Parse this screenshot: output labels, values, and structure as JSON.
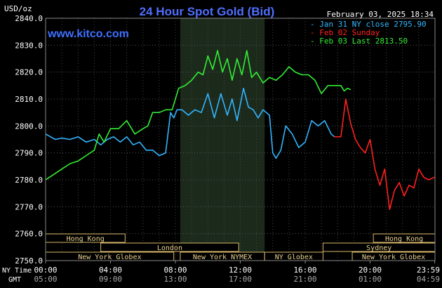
{
  "chart_data": {
    "type": "line",
    "title": "24 Hour Spot Gold (Bid)",
    "site": "www.kitco.com",
    "date_label": "February 03, 2025 18:34",
    "ylabel": "USD/oz",
    "ylim": [
      2750,
      2840
    ],
    "yticks": [
      "2840.0",
      "2830.0",
      "2820.0",
      "2810.0",
      "2800.0",
      "2790.0",
      "2780.0",
      "2770.0",
      "2760.0",
      "2750.0"
    ],
    "ytick_values": [
      2840,
      2830,
      2820,
      2810,
      2800,
      2790,
      2780,
      2770,
      2760,
      2750
    ],
    "xlim": [
      0,
      24
    ],
    "ny_time_label": "NY Time",
    "gmt_label": "GMT",
    "xticks_ny": [
      "00:00",
      "04:00",
      "08:00",
      "12:00",
      "16:00",
      "20:00",
      "23:59"
    ],
    "xticks_gmt": [
      "05:00",
      "09:00",
      "13:00",
      "17:00",
      "21:00",
      "01:00",
      "04:59"
    ],
    "xtick_hours": [
      0,
      4,
      8,
      12,
      16,
      20,
      23.98
    ],
    "grid": true,
    "nymex_shade_hours": [
      8.3,
      13.5
    ],
    "legend_position": "top-right",
    "series": [
      {
        "name": "Jan 31 NY close 2795.90",
        "color": "#33b5ff",
        "x": [
          0,
          0.3,
          0.6,
          1,
          1.5,
          2,
          2.5,
          3,
          3.4,
          3.8,
          4.2,
          4.6,
          5,
          5.4,
          5.8,
          6.2,
          6.6,
          7,
          7.4,
          7.7,
          7.9,
          8.1,
          8.4,
          8.8,
          9.2,
          9.6,
          10,
          10.4,
          10.8,
          11.2,
          11.5,
          11.8,
          12.2,
          12.5,
          12.8,
          13.1,
          13.4,
          13.8,
          14.0,
          14.2,
          14.5,
          14.8,
          15.2,
          15.6,
          16,
          16.4,
          16.8,
          17.2,
          17.6,
          17.8
        ],
        "values": [
          2797,
          2796,
          2795,
          2795.5,
          2795,
          2796,
          2794,
          2795,
          2793,
          2795,
          2796,
          2794,
          2796,
          2793,
          2794,
          2791,
          2791,
          2789,
          2790,
          2805,
          2803,
          2806,
          2806,
          2804,
          2806,
          2805,
          2812,
          2803,
          2812,
          2804,
          2810,
          2802,
          2814,
          2807,
          2806,
          2803,
          2806,
          2804,
          2790,
          2788,
          2791,
          2800,
          2797,
          2792,
          2794,
          2802,
          2800,
          2802,
          2797,
          2796
        ]
      },
      {
        "name": "Feb 02 Sunday",
        "color": "#ff2020",
        "x": [
          17.8,
          18.2,
          18.5,
          18.8,
          19.1,
          19.4,
          19.7,
          20,
          20.3,
          20.6,
          20.9,
          21.2,
          21.5,
          21.8,
          22.1,
          22.4,
          22.7,
          23,
          23.3,
          23.6,
          23.98
        ],
        "values": [
          2796,
          2796,
          2810,
          2801,
          2795,
          2792,
          2790,
          2795,
          2784,
          2778,
          2784,
          2769,
          2776,
          2779,
          2774,
          2778,
          2777,
          2784,
          2781,
          2780,
          2781
        ]
      },
      {
        "name": "Feb 03 Last 2813.50",
        "color": "#33ee33",
        "x": [
          0,
          0.5,
          1,
          1.5,
          2,
          2.5,
          3,
          3.3,
          3.6,
          4,
          4.5,
          5,
          5.5,
          6,
          6.3,
          6.6,
          7,
          7.4,
          7.8,
          8.2,
          8.6,
          9,
          9.4,
          9.7,
          10,
          10.3,
          10.6,
          10.9,
          11.2,
          11.5,
          11.8,
          12.1,
          12.4,
          12.7,
          13,
          13.4,
          13.8,
          14.2,
          14.6,
          15,
          15.4,
          15.8,
          16.2,
          16.6,
          17,
          17.4,
          17.8,
          18.2,
          18.4,
          18.6,
          18.8
        ],
        "values": [
          2780,
          2782,
          2784,
          2786,
          2787,
          2789,
          2791,
          2797,
          2794,
          2799,
          2799,
          2802,
          2797,
          2799,
          2800,
          2805,
          2805,
          2806,
          2806,
          2814,
          2815,
          2817,
          2820,
          2819,
          2826,
          2821,
          2828,
          2820,
          2825,
          2817,
          2825,
          2819,
          2828,
          2818,
          2820,
          2816,
          2818,
          2817,
          2819,
          2822,
          2820,
          2819,
          2819,
          2817,
          2812,
          2815,
          2815,
          2815,
          2813,
          2814,
          2813.5
        ]
      }
    ],
    "session_bars": [
      {
        "label": "Hong Kong",
        "start": 0,
        "end": 4.9,
        "row": 0
      },
      {
        "label": "Hong Kong",
        "start": 20.2,
        "end": 24,
        "row": 0
      },
      {
        "label": "London",
        "start": 3.4,
        "end": 11.9,
        "row": 1
      },
      {
        "label": "Sydney",
        "start": 17.1,
        "end": 24,
        "row": 1
      },
      {
        "label": "New York Globex",
        "start": 0,
        "end": 7.9,
        "row": 2
      },
      {
        "label": "New York NYMEX",
        "start": 8.3,
        "end": 13.5,
        "row": 2
      },
      {
        "label": "NY Globex",
        "start": 13.5,
        "end": 17.1,
        "row": 2
      },
      {
        "label": "New York Globex",
        "start": 18.9,
        "end": 24,
        "row": 2
      }
    ]
  }
}
